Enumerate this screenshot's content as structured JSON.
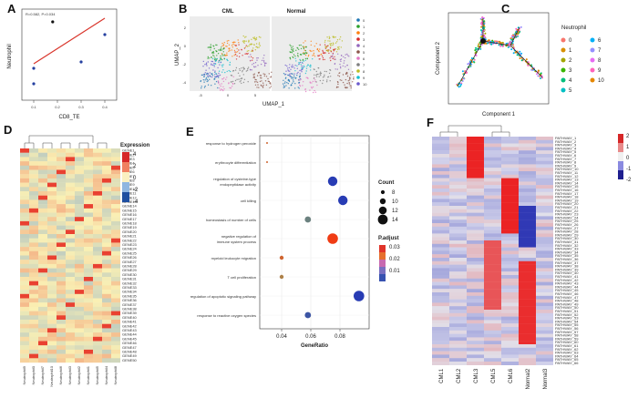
{
  "panels": {
    "A": {
      "label": "A",
      "ylabel": "Neutrophil",
      "xlabel": "CD8_TE",
      "annotation": "R=0.582, P=0.034",
      "xticks": [
        "0.1",
        "0.2",
        "0.3",
        "0.4"
      ]
    },
    "B": {
      "label": "B",
      "left_title": "CML",
      "right_title": "Normal",
      "xlabel": "UMAP_1",
      "ylabel": "UMAP_2",
      "clusters": [
        "0",
        "1",
        "2",
        "3",
        "4",
        "5",
        "6",
        "7",
        "8",
        "9",
        "10"
      ],
      "xticks": [
        "-5",
        "0",
        "5"
      ],
      "yticks": [
        "2",
        "0",
        "-2",
        "-4"
      ]
    },
    "C": {
      "label": "C",
      "legend_title": "Neutrophil",
      "xlabel": "Component 1",
      "ylabel": "Component 2",
      "states": [
        "0",
        "1",
        "2",
        "3",
        "4",
        "5",
        "6",
        "7",
        "8",
        "9",
        "10"
      ]
    },
    "D": {
      "label": "D",
      "legend_title": "Expression",
      "scale": [
        "4",
        "2",
        "0",
        "-2",
        "-4"
      ],
      "columns": [
        "Neutrophil9",
        "Neutrophil0",
        "Neutrophil7",
        "Neutrophil10",
        "Neutrophil6",
        "Neutrophil3",
        "Neutrophil2",
        "Neutrophil1",
        "Neutrophil5",
        "Neutrophil4",
        "Neutrophil8"
      ]
    },
    "E": {
      "label": "E",
      "xlabel": "GeneRatio",
      "size_title": "Count",
      "color_title": "P.adjust",
      "size_values": [
        "8",
        "10",
        "12",
        "14"
      ],
      "color_ticks": [
        "0.03",
        "0.02",
        "0.01"
      ],
      "xticks": [
        "0.04",
        "0.06",
        "0.08"
      ],
      "terms": [
        "response to hydrogen peroxide",
        "erythrocyte differentiation",
        "regulation of cysteine-type\nendopeptidase activity",
        "cell killing",
        "homeostasis of number of cells",
        "negative regulation of\nimmune system process",
        "myeloid leukocyte migration",
        "T cell proliferation",
        "regulation of apoptotic signaling pathway",
        "response to reactive oxygen species"
      ]
    },
    "F": {
      "label": "F",
      "columns": [
        "CML1",
        "CML2",
        "CML3",
        "CML5",
        "CML6",
        "Normal2",
        "Normal3"
      ],
      "scale": [
        "2",
        "1",
        "0",
        "-1",
        "-2"
      ]
    }
  },
  "chart_data": [
    {
      "panel": "A",
      "type": "scatter",
      "title": "",
      "xlabel": "CD8_TE",
      "ylabel": "Neutrophil",
      "x": [
        0.1,
        0.1,
        0.3,
        0.4,
        0.18
      ],
      "y": [
        0.35,
        0.18,
        0.42,
        0.72,
        0.86
      ],
      "fit": {
        "x": [
          0.1,
          0.4
        ],
        "y": [
          0.4,
          0.9
        ]
      },
      "annotation": "R=0.582, P=0.034"
    },
    {
      "panel": "E",
      "type": "scatter",
      "xlabel": "GeneRatio",
      "ylabel": "",
      "categories": [
        "response to hydrogen peroxide",
        "erythrocyte differentiation",
        "regulation of cysteine-type endopeptidase activity",
        "cell killing",
        "homeostasis of number of cells",
        "negative regulation of immune system process",
        "myeloid leukocyte migration",
        "T cell proliferation",
        "regulation of apoptotic signaling pathway",
        "response to reactive oxygen species"
      ],
      "gene_ratio": [
        0.03,
        0.03,
        0.075,
        0.082,
        0.058,
        0.075,
        0.04,
        0.04,
        0.093,
        0.058
      ],
      "count": [
        6,
        6,
        13,
        13,
        10,
        14,
        8,
        8,
        14,
        10
      ],
      "p_adjust": [
        0.03,
        0.03,
        0.005,
        0.005,
        0.015,
        0.035,
        0.03,
        0.025,
        0.005,
        0.008
      ],
      "xlim": [
        0.025,
        0.1
      ]
    }
  ]
}
